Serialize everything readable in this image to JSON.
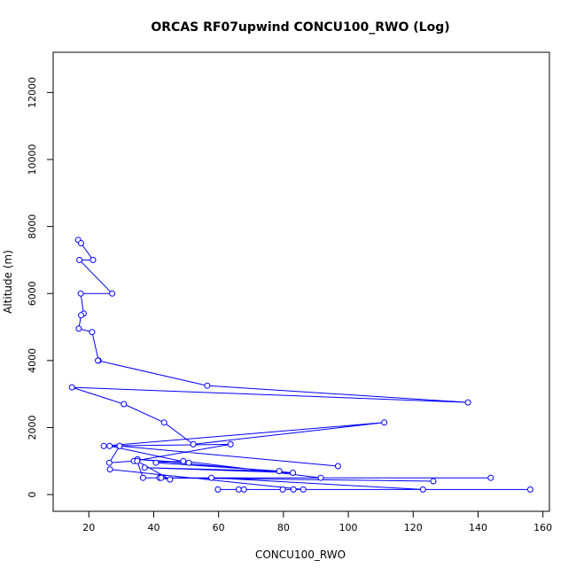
{
  "chart_data": {
    "type": "line",
    "title": "ORCAS RF07upwind CONCU100_RWO (Log)",
    "xlabel": "CONCU100_RWO",
    "ylabel": "Altitude (m)",
    "xlim": [
      9,
      162
    ],
    "ylim": [
      -500,
      13200
    ],
    "xticks": [
      20,
      40,
      60,
      80,
      100,
      120,
      140,
      160
    ],
    "yticks": [
      0,
      2000,
      4000,
      6000,
      8000,
      10000,
      12000
    ],
    "grid": false,
    "line_color": "#0000ff",
    "marker": "open-circle",
    "series": [
      {
        "x": [
          16.7,
          17.6,
          21.3,
          17.1,
          27.2,
          17.5,
          18.4,
          17.6,
          16.9,
          21.0,
          23.0,
          22.8,
          56.5,
          136.9,
          14.8,
          30.8,
          43.2,
          52.2,
          111.1,
          24.6,
          63.7,
          33.9,
          26.3,
          29.5,
          96.8,
          29.5,
          26.4,
          50.8,
          35.0,
          82.9,
          37.2,
          78.7,
          40.7,
          49.1,
          91.5,
          143.9,
          36.7,
          34.9,
          45.0,
          41.8,
          126.2,
          42.3,
          57.8,
          123.0,
          156.1,
          59.8,
          66.2,
          67.8,
          79.8,
          83.1,
          86.1,
          26.5
        ],
        "y": [
          7600,
          7500,
          7000,
          7000,
          6000,
          6000,
          5400,
          5350,
          4950,
          4850,
          4000,
          4000,
          3250,
          2750,
          3200,
          2700,
          2150,
          1500,
          2150,
          1450,
          1500,
          1000,
          950,
          1450,
          850,
          1450,
          1450,
          950,
          1050,
          650,
          800,
          700,
          950,
          1000,
          500,
          500,
          500,
          1000,
          450,
          500,
          400,
          500,
          500,
          150,
          150,
          150,
          150,
          150,
          150,
          150,
          150,
          750
        ]
      }
    ]
  }
}
